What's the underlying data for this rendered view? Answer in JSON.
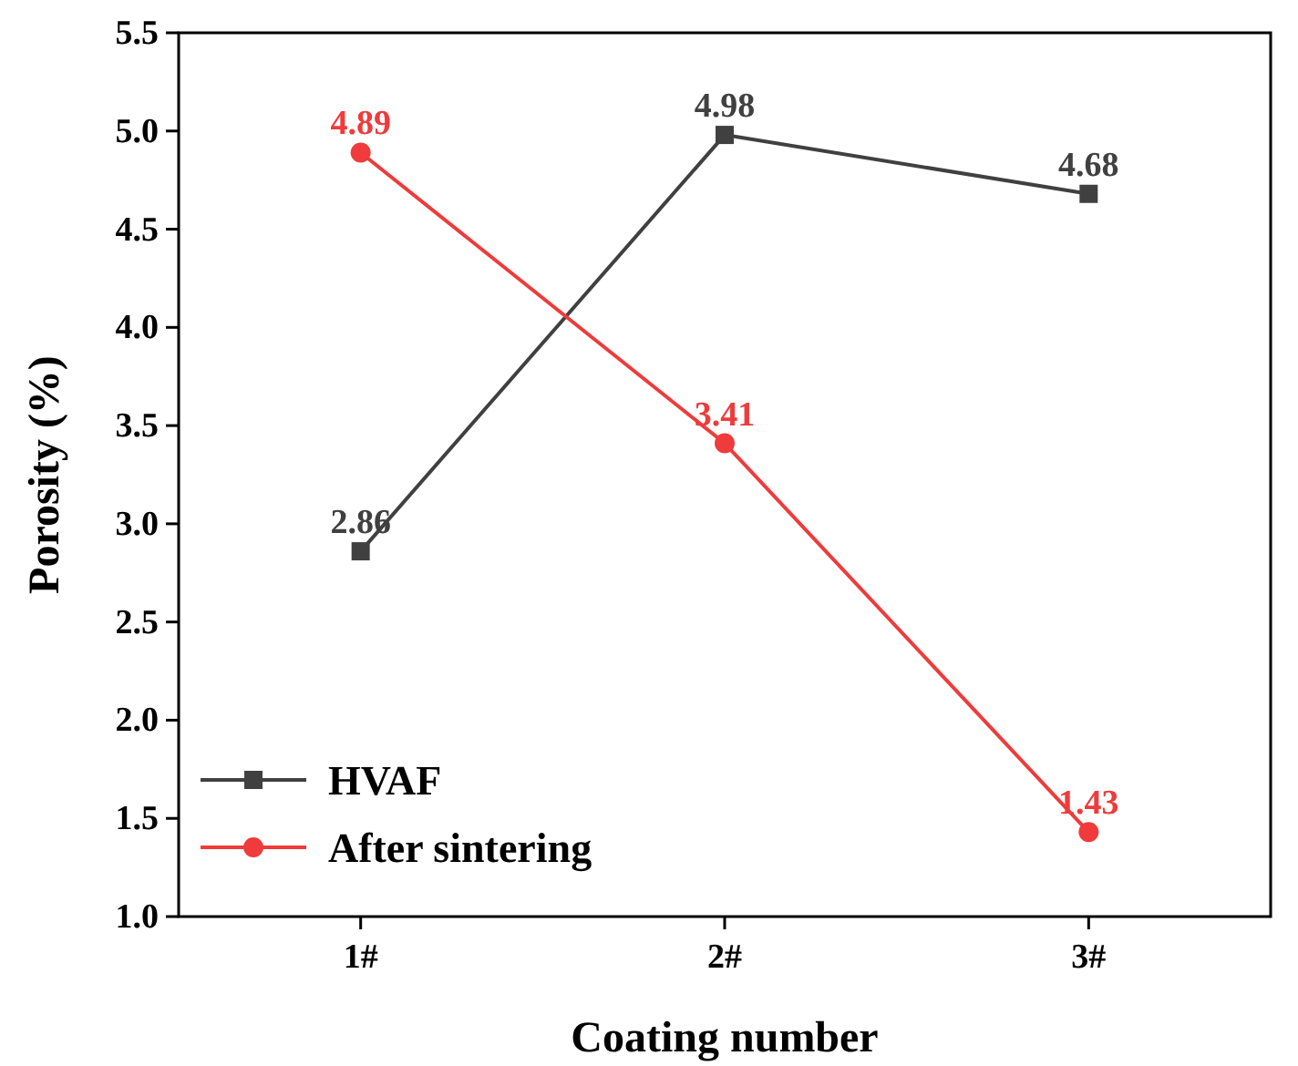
{
  "chart_data": {
    "type": "line",
    "xlabel": "Coating number",
    "ylabel": "Porosity (%)",
    "categories": [
      "1#",
      "2#",
      "3#"
    ],
    "series": [
      {
        "name": "HVAF",
        "color": "#404040",
        "marker": "square",
        "values": [
          2.86,
          4.98,
          4.68
        ]
      },
      {
        "name": "After sintering",
        "color": "#ef3b3b",
        "marker": "circle",
        "values": [
          4.89,
          3.41,
          1.43
        ]
      }
    ],
    "ylim": [
      1.0,
      5.5
    ],
    "yticks": [
      {
        "value": 1.0,
        "label": "1.0"
      },
      {
        "value": 1.5,
        "label": "1.5"
      },
      {
        "value": 2.0,
        "label": "2.0"
      },
      {
        "value": 2.5,
        "label": "2.5"
      },
      {
        "value": 3.0,
        "label": "3.0"
      },
      {
        "value": 3.5,
        "label": "3.5"
      },
      {
        "value": 4.0,
        "label": "4.0"
      },
      {
        "value": 4.5,
        "label": "4.5"
      },
      {
        "value": 5.0,
        "label": "5.0"
      },
      {
        "value": 5.5,
        "label": "5.5"
      }
    ],
    "data_labels": true,
    "grid": false,
    "legend": "bottom left"
  }
}
